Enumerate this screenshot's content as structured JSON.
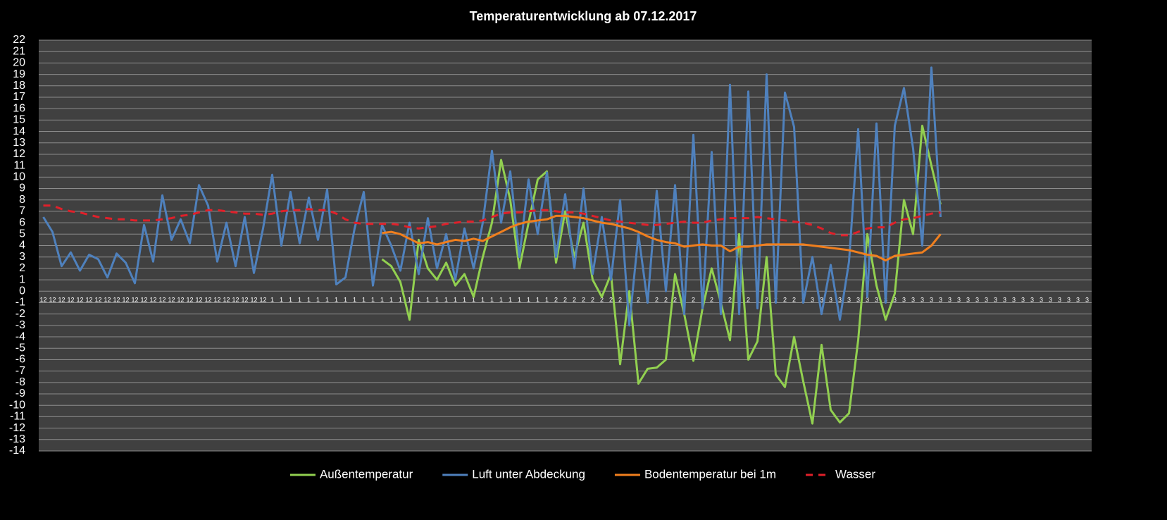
{
  "chart_data": {
    "type": "line",
    "title": "Temperaturentwicklung ab 07.12.2017",
    "categories": [
      "12",
      "12",
      "12",
      "12",
      "12",
      "12",
      "12",
      "12",
      "12",
      "12",
      "12",
      "12",
      "12",
      "12",
      "12",
      "12",
      "12",
      "12",
      "12",
      "12",
      "12",
      "12",
      "12",
      "12",
      "12",
      "1",
      "1",
      "1",
      "1",
      "1",
      "1",
      "1",
      "1",
      "1",
      "1",
      "1",
      "1",
      "1",
      "1",
      "1",
      "1",
      "1",
      "1",
      "1",
      "1",
      "1",
      "1",
      "1",
      "1",
      "1",
      "1",
      "1",
      "1",
      "1",
      "1",
      "1",
      "2",
      "2",
      "2",
      "2",
      "2",
      "2",
      "2",
      "2",
      "2",
      "2",
      "2",
      "2",
      "2",
      "2",
      "2",
      "2",
      "2",
      "2",
      "2",
      "2",
      "2",
      "2",
      "2",
      "2",
      "2",
      "2",
      "2",
      "2",
      "3",
      "3",
      "3",
      "3",
      "3",
      "3",
      "3",
      "3",
      "3",
      "3",
      "3",
      "3",
      "3",
      "3",
      "3",
      "3",
      "3",
      "3",
      "3",
      "3",
      "3",
      "3",
      "3",
      "3",
      "3",
      "3",
      "3",
      "3",
      "3",
      "3",
      "3"
    ],
    "series": [
      {
        "name": "Außentemperatur",
        "color": "#92d050",
        "line_style": "solid",
        "values": [
          null,
          null,
          null,
          null,
          null,
          null,
          null,
          null,
          null,
          null,
          null,
          null,
          null,
          null,
          null,
          null,
          null,
          null,
          null,
          null,
          null,
          null,
          null,
          null,
          null,
          null,
          null,
          null,
          null,
          null,
          null,
          null,
          null,
          null,
          null,
          null,
          null,
          2.8,
          2.2,
          0.8,
          -2.5,
          4.5,
          2,
          1,
          2.5,
          0.5,
          1.5,
          -0.5,
          3,
          6,
          11.5,
          8,
          2,
          6,
          9.8,
          10.5,
          2.5,
          7,
          3,
          6,
          1,
          -0.5,
          1.5,
          -6.4,
          0,
          -8.1,
          -6.8,
          -6.7,
          -6,
          1.5,
          -2,
          -6.1,
          -1.5,
          2,
          -1,
          -4.3,
          5,
          -6,
          -4.4,
          3,
          -7.3,
          -8.4,
          -4,
          -7.9,
          -11.6,
          -4.7,
          -10.4,
          -11.5,
          -10.7,
          -4.3,
          5,
          0.5,
          -2.5,
          -0.2,
          8,
          5,
          14.5,
          11,
          7.6,
          null,
          null,
          null,
          null,
          null,
          null,
          null,
          null,
          null,
          null,
          null,
          null,
          null,
          null,
          null,
          null
        ]
      },
      {
        "name": "Luft unter Abdeckung",
        "color": "#4f81bd",
        "line_style": "solid",
        "values": [
          6.5,
          5.2,
          2.2,
          3.4,
          1.8,
          3.2,
          2.8,
          1.2,
          3.3,
          2.5,
          0.7,
          5.8,
          2.6,
          8.4,
          4.5,
          6.3,
          4.2,
          9.3,
          7.5,
          2.6,
          6,
          2.2,
          6.5,
          1.6,
          5.5,
          10.2,
          4,
          8.7,
          4.2,
          8.2,
          4.5,
          8.9,
          0.6,
          1.2,
          5.5,
          8.7,
          0.5,
          5.8,
          4,
          1.8,
          6,
          1.5,
          6.4,
          2,
          5,
          1,
          5.5,
          2,
          6,
          12.3,
          6,
          10.5,
          3,
          9.8,
          5,
          10.4,
          3,
          8.5,
          2,
          9,
          1.5,
          6.5,
          1,
          8,
          -3,
          5,
          -1,
          8.8,
          0,
          9.3,
          -2,
          13.7,
          -1.5,
          12.2,
          -2,
          18.1,
          -2,
          17.5,
          -1.5,
          19,
          -1,
          17.4,
          14.4,
          -1,
          3,
          -2,
          2.3,
          -2.5,
          2.6,
          14.2,
          -0.5,
          14.7,
          -1,
          14.5,
          17.8,
          12.5,
          4,
          19.6,
          6.5,
          null,
          null,
          null,
          null,
          null,
          null,
          null,
          null,
          null,
          null,
          null,
          null,
          null,
          null,
          null,
          null
        ]
      },
      {
        "name": "Bodentemperatur bei 1m",
        "color": "#f07f1e",
        "line_style": "solid",
        "values": [
          null,
          null,
          null,
          null,
          null,
          null,
          null,
          null,
          null,
          null,
          null,
          null,
          null,
          null,
          null,
          null,
          null,
          null,
          null,
          null,
          null,
          null,
          null,
          null,
          null,
          null,
          null,
          null,
          null,
          null,
          null,
          null,
          null,
          null,
          null,
          null,
          null,
          5.1,
          5.2,
          5.0,
          4.6,
          4.2,
          4.3,
          4.1,
          4.3,
          4.5,
          4.4,
          4.6,
          4.4,
          4.8,
          5.2,
          5.6,
          5.9,
          6.1,
          6.2,
          6.3,
          6.6,
          6.6,
          6.5,
          6.4,
          6.2,
          6.0,
          5.9,
          5.7,
          5.5,
          5.2,
          4.8,
          4.5,
          4.3,
          4.2,
          3.9,
          4.0,
          4.1,
          4.0,
          4.0,
          3.5,
          3.9,
          3.9,
          4.0,
          4.1,
          4.1,
          4.1,
          4.1,
          4.1,
          4.0,
          3.9,
          3.8,
          3.7,
          3.6,
          3.4,
          3.2,
          3.1,
          2.7,
          3.1,
          3.2,
          3.3,
          3.4,
          4.0,
          5.0,
          null,
          null,
          null,
          null,
          null,
          null,
          null,
          null,
          null,
          null,
          null,
          null,
          null,
          null,
          null,
          null
        ]
      },
      {
        "name": "Wasser",
        "color": "#e0202a",
        "line_style": "dashed",
        "values": [
          7.5,
          7.5,
          7.2,
          7.0,
          6.9,
          6.7,
          6.5,
          6.4,
          6.3,
          6.3,
          6.2,
          6.2,
          6.2,
          6.3,
          6.4,
          6.6,
          6.7,
          6.9,
          7.1,
          7.1,
          7.0,
          6.9,
          6.8,
          6.8,
          6.7,
          6.8,
          7.0,
          7.1,
          7.1,
          7.2,
          7.1,
          7.1,
          6.8,
          6.3,
          6.0,
          5.9,
          5.9,
          5.9,
          5.9,
          5.8,
          5.6,
          5.5,
          5.6,
          5.7,
          5.9,
          6.0,
          6.1,
          6.1,
          6.2,
          6.5,
          6.8,
          6.9,
          6.9,
          7.0,
          7.1,
          7.1,
          7.0,
          6.9,
          6.9,
          6.8,
          6.6,
          6.4,
          6.2,
          6.1,
          6.0,
          5.9,
          5.8,
          5.8,
          5.9,
          6.0,
          6.1,
          6.0,
          6.0,
          6.2,
          6.3,
          6.4,
          6.4,
          6.4,
          6.5,
          6.4,
          6.3,
          6.2,
          6.1,
          6.0,
          5.8,
          5.5,
          5.1,
          4.9,
          4.9,
          5.2,
          5.5,
          5.6,
          5.6,
          6.0,
          6.3,
          6.4,
          6.6,
          6.8,
          6.9,
          null,
          null,
          null,
          null,
          null,
          null,
          null,
          null,
          null,
          null,
          null,
          null,
          null,
          null,
          null,
          null
        ]
      }
    ],
    "ylim": [
      -14,
      22
    ],
    "yticks": [
      -14,
      -13,
      -12,
      -11,
      -10,
      -9,
      -8,
      -7,
      -6,
      -5,
      -4,
      -3,
      -2,
      -1,
      0,
      1,
      2,
      3,
      4,
      5,
      6,
      7,
      8,
      9,
      10,
      11,
      12,
      13,
      14,
      15,
      16,
      17,
      18,
      19,
      20,
      21,
      22
    ],
    "grid": true,
    "legend": "bottom"
  }
}
